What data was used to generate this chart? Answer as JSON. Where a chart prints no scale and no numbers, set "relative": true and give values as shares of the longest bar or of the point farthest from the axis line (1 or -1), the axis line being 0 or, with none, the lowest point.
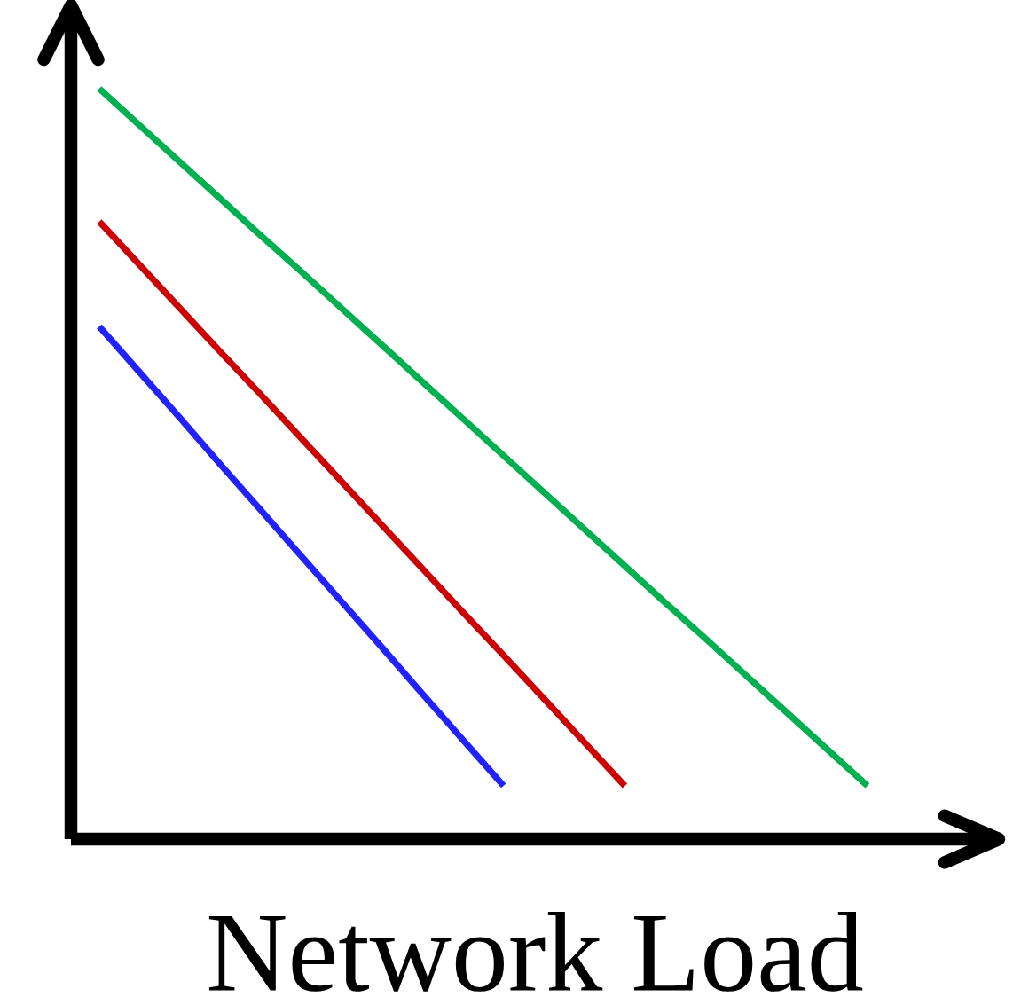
{
  "chart_data": {
    "type": "line",
    "xlabel": "Network Load",
    "relative": true,
    "categories": [
      null,
      null,
      null,
      null,
      null,
      null,
      null,
      null,
      null,
      null,
      null,
      null,
      null,
      null,
      null,
      null,
      null,
      null,
      null,
      null
    ],
    "series": [
      {
        "color": "#00b050",
        "values": [
          1,
          0.951,
          0.902,
          0.853,
          0.804,
          0.756,
          0.707,
          0.658,
          0.609,
          0.56,
          0.511,
          0.462,
          0.413,
          0.364,
          0.315,
          0.267,
          0.218,
          0.169,
          0.12,
          0.071
        ]
      },
      {
        "color": "#cc0000",
        "values": [
          0.823,
          0.765,
          0.707,
          0.649,
          0.592,
          0.534,
          0.476,
          0.418,
          0.36,
          0.302,
          0.245,
          0.187,
          0.129,
          0.071,
          null,
          null,
          null,
          null,
          null,
          null
        ]
      },
      {
        "color": "#2222ff",
        "values": [
          0.683,
          0.622,
          0.561,
          0.499,
          0.438,
          0.377,
          0.316,
          0.255,
          0.193,
          0.132,
          0.071,
          null,
          null,
          null,
          null,
          null,
          null,
          null,
          null,
          null
        ]
      }
    ]
  }
}
